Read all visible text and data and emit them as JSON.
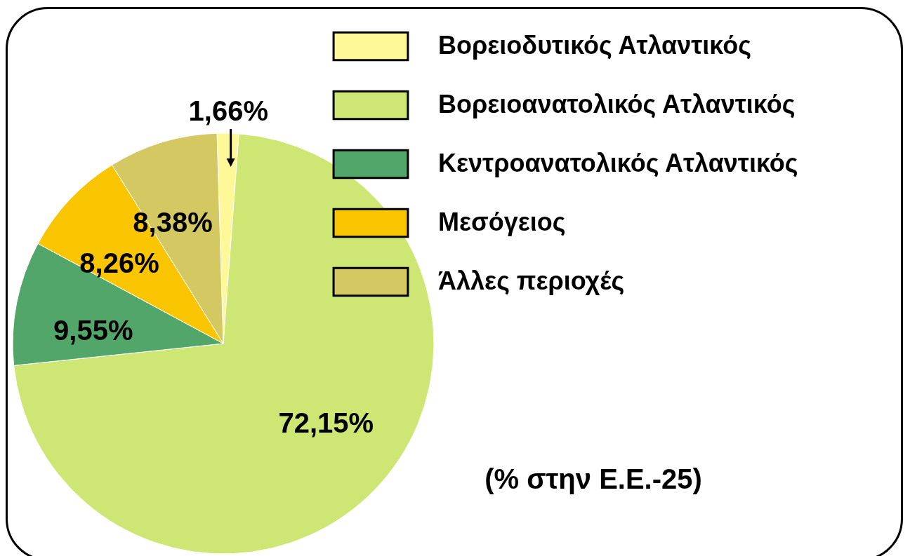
{
  "chart_data": {
    "type": "pie",
    "categories": [
      "Βορειοδυτικός Ατλαντικός",
      "Βορειοανατολικός Ατλαντικός",
      "Κεντροανατολικός Ατλαντικός",
      "Μεσόγειος",
      "Άλλες περιοχές"
    ],
    "values": [
      1.66,
      72.15,
      9.55,
      8.26,
      8.38
    ],
    "colors": [
      "#fff899",
      "#cde674",
      "#52a66a",
      "#f9c400",
      "#d4c862"
    ],
    "value_labels": [
      "1,66%",
      "72,15%",
      "9,55%",
      "8,26%",
      "8,38%"
    ],
    "legend": "top right",
    "annotations": [
      "(% στην Ε.Ε.-25)"
    ]
  }
}
